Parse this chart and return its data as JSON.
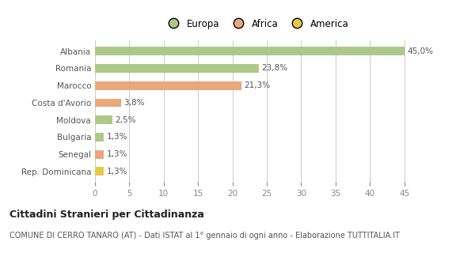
{
  "categories": [
    "Albania",
    "Romania",
    "Marocco",
    "Costa d'Avorio",
    "Moldova",
    "Bulgaria",
    "Senegal",
    "Rep. Dominicana"
  ],
  "values": [
    45.0,
    23.8,
    21.3,
    3.8,
    2.5,
    1.3,
    1.3,
    1.3
  ],
  "labels": [
    "45,0%",
    "23,8%",
    "21,3%",
    "3,8%",
    "2,5%",
    "1,3%",
    "1,3%",
    "1,3%"
  ],
  "colors": [
    "#adc98a",
    "#adc98a",
    "#e8a87c",
    "#e8a87c",
    "#adc98a",
    "#adc98a",
    "#e8a87c",
    "#e8c84a"
  ],
  "legend_labels": [
    "Europa",
    "Africa",
    "America"
  ],
  "legend_colors": [
    "#adc98a",
    "#e8a87c",
    "#e8c84a"
  ],
  "xlim": [
    0,
    47
  ],
  "xticks": [
    0,
    5,
    10,
    15,
    20,
    25,
    30,
    35,
    40,
    45
  ],
  "title": "Cittadini Stranieri per Cittadinanza",
  "subtitle": "COMUNE DI CERRO TANARO (AT) - Dati ISTAT al 1° gennaio di ogni anno - Elaborazione TUTTITALIA.IT",
  "bg_color": "#ffffff",
  "bar_height": 0.5,
  "title_fontsize": 9,
  "subtitle_fontsize": 7,
  "label_fontsize": 7.5,
  "tick_fontsize": 7.5,
  "legend_fontsize": 8.5
}
